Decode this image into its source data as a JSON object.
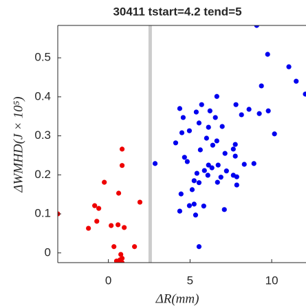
{
  "chart_data": {
    "type": "scatter",
    "title": "30411 tstart=4.2 tend=5",
    "xlabel": "ΔR(mm)",
    "ylabel": "ΔWMHD(J × 10⁵)",
    "xlim": [
      -3.1,
      12.1
    ],
    "ylim": [
      -0.025,
      0.583
    ],
    "xticks": [
      0,
      5,
      10
    ],
    "yticks": [
      0,
      0.1,
      0.2,
      0.3,
      0.4,
      0.5
    ],
    "vline": 2.56,
    "vline_color": "#cccccc",
    "series": [
      {
        "name": "red",
        "color": "#ee0000",
        "x": [
          -3.1,
          0.84,
          0.84,
          -0.25,
          0.63,
          -0.84,
          -0.59,
          1.93,
          -0.71,
          -1.22,
          0.17,
          0.59,
          0.97,
          0.34,
          1.6,
          0.76,
          0.84,
          0.5,
          0.84,
          0.59,
          0.71
        ],
        "values": [
          0.1,
          0.266,
          0.224,
          0.181,
          0.153,
          0.121,
          0.114,
          0.13,
          0.081,
          0.063,
          0.07,
          0.072,
          0.065,
          0.016,
          0.016,
          -0.004,
          -0.014,
          -0.021,
          -0.025,
          -0.028,
          -0.018
        ]
      },
      {
        "name": "blue",
        "color": "#0000ee",
        "x": [
          9.08,
          9.75,
          11.05,
          11.5,
          12.06,
          9.37,
          6.64,
          5.71,
          2.86,
          7.81,
          4.37,
          5.38,
          6.22,
          8.61,
          9.79,
          9.24,
          8.15,
          4.58,
          6.55,
          5.55,
          6.13,
          4.5,
          4.96,
          10.17,
          6.97,
          6.01,
          6.64,
          6.39,
          4.12,
          7.77,
          7.65,
          7.14,
          5.63,
          4.66,
          4.83,
          6.13,
          6.72,
          7.77,
          8.32,
          8.91,
          7.23,
          7.65,
          5.88,
          6.34,
          5.42,
          5.25,
          5.55,
          6.09,
          6.89,
          7.86,
          7.86,
          6.68,
          5.13,
          4.45,
          5.25,
          5.84,
          4.96,
          4.37,
          5.34,
          7.1,
          5.55
        ],
        "values": [
          0.583,
          0.509,
          0.477,
          0.44,
          0.407,
          0.428,
          0.401,
          0.38,
          0.229,
          0.38,
          0.37,
          0.361,
          0.364,
          0.368,
          0.364,
          0.357,
          0.354,
          0.347,
          0.347,
          0.333,
          0.322,
          0.308,
          0.313,
          0.305,
          0.324,
          0.294,
          0.287,
          0.276,
          0.282,
          0.278,
          0.266,
          0.255,
          0.264,
          0.245,
          0.234,
          0.225,
          0.225,
          0.248,
          0.227,
          0.229,
          0.21,
          0.199,
          0.211,
          0.218,
          0.204,
          0.185,
          0.18,
          0.199,
          0.194,
          0.195,
          0.174,
          0.181,
          0.162,
          0.151,
          0.125,
          0.12,
          0.121,
          0.107,
          0.097,
          0.111,
          0.016
        ]
      }
    ]
  }
}
